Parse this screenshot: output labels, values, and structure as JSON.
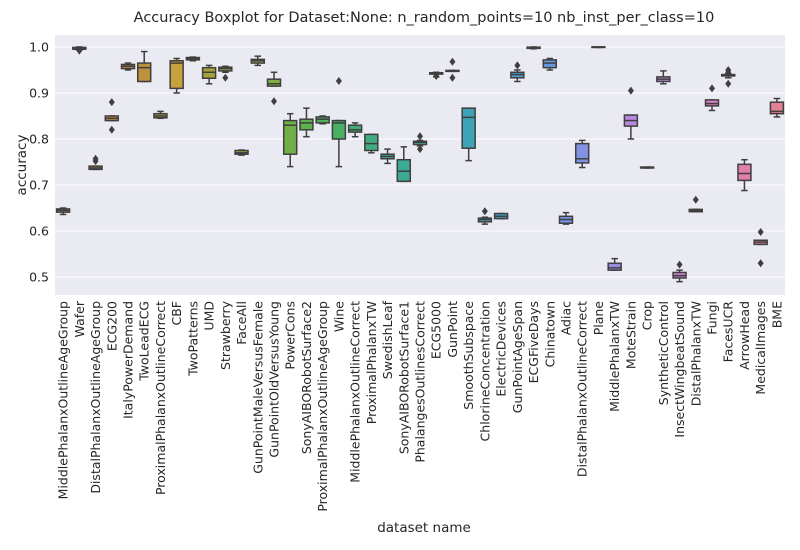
{
  "chart_data": {
    "type": "box",
    "title": "Accuracy Boxplot for Dataset:None: n_random_points=10 nb_inst_per_class=10",
    "x_label": "dataset name",
    "y_label": "accuracy",
    "ylim": [
      0.461,
      1.026
    ],
    "yticks": [
      0.5,
      0.6,
      0.7,
      0.8,
      0.9,
      {
        "value": 1,
        "label": "1.0"
      }
    ],
    "grid": true,
    "categories": [
      "MiddlePhalanxOutlineAgeGroup",
      "Wafer",
      "DistalPhalanxOutlineAgeGroup",
      "ECG200",
      "ItalyPowerDemand",
      "TwoLeadECG",
      "ProximalPhalanxOutlineCorrect",
      "CBF",
      "TwoPatterns",
      "UMD",
      "Strawberry",
      "FaceAll",
      "GunPointMaleVersusFemale",
      "GunPointOldVersusYoung",
      "PowerCons",
      "SonyAIBORobotSurface2",
      "ProximalPhalanxOutlineAgeGroup",
      "Wine",
      "MiddlePhalanxOutlineCorrect",
      "ProximalPhalanxTW",
      "SwedishLeaf",
      "SonyAIBORobotSurface1",
      "PhalangesOutlinesCorrect",
      "ECG5000",
      "GunPoint",
      "SmoothSubspace",
      "ChlorineConcentration",
      "ElectricDevices",
      "GunPointAgeSpan",
      "ECGFiveDays",
      "Chinatown",
      "Adiac",
      "DistalPhalanxOutlineCorrect",
      "Plane",
      "MiddlePhalanxTW",
      "MoteStrain",
      "Crop",
      "SyntheticControl",
      "InsectWingbeatSound",
      "DistalPhalanxTW",
      "Fungi",
      "FacesUCR",
      "ArrowHead",
      "MedicalImages",
      "BME"
    ],
    "boxes": [
      {
        "whislo": 0.636,
        "q1": 0.641,
        "med": 0.645,
        "q3": 0.648,
        "whishi": 0.65,
        "fliers": [],
        "color": "#cf7570"
      },
      {
        "whislo": 0.993,
        "q1": 0.995,
        "med": 0.998,
        "q3": 0.999,
        "whishi": 1,
        "fliers": [
          0.992
        ],
        "color": "#cc7a5c"
      },
      {
        "whislo": 0.734,
        "q1": 0.734,
        "med": 0.737,
        "q3": 0.741,
        "whishi": 0.741,
        "fliers": [
          0.752,
          0.757
        ],
        "color": "#c9804d"
      },
      {
        "whislo": 0.84,
        "q1": 0.84,
        "med": 0.845,
        "q3": 0.85,
        "whishi": 0.85,
        "fliers": [
          0.88,
          0.82
        ],
        "color": "#c68646"
      },
      {
        "whislo": 0.95,
        "q1": 0.953,
        "med": 0.958,
        "q3": 0.962,
        "whishi": 0.965,
        "fliers": [],
        "color": "#c28c41"
      },
      {
        "whislo": 0.925,
        "q1": 0.925,
        "med": 0.955,
        "q3": 0.965,
        "whishi": 0.99,
        "fliers": [],
        "color": "#bd923e"
      },
      {
        "whislo": 0.845,
        "q1": 0.846,
        "med": 0.85,
        "q3": 0.855,
        "whishi": 0.86,
        "fliers": [],
        "color": "#b8973d"
      },
      {
        "whislo": 0.9,
        "q1": 0.91,
        "med": 0.965,
        "q3": 0.97,
        "whishi": 0.975,
        "fliers": [],
        "color": "#c8a03c"
      },
      {
        "whislo": 0.97,
        "q1": 0.972,
        "med": 0.975,
        "q3": 0.977,
        "whishi": 0.978,
        "fliers": [],
        "color": "#ad9f3c"
      },
      {
        "whislo": 0.92,
        "q1": 0.932,
        "med": 0.945,
        "q3": 0.955,
        "whishi": 0.96,
        "fliers": [],
        "color": "#a6a33c"
      },
      {
        "whislo": 0.945,
        "q1": 0.948,
        "med": 0.953,
        "q3": 0.956,
        "whishi": 0.958,
        "fliers": [
          0.933
        ],
        "color": "#9ea63c"
      },
      {
        "whislo": 0.765,
        "q1": 0.767,
        "med": 0.77,
        "q3": 0.775,
        "whishi": 0.776,
        "fliers": [],
        "color": "#96a93d"
      },
      {
        "whislo": 0.96,
        "q1": 0.965,
        "med": 0.97,
        "q3": 0.973,
        "whishi": 0.98,
        "fliers": [],
        "color": "#8cac3f"
      },
      {
        "whislo": 0.915,
        "q1": 0.915,
        "med": 0.92,
        "q3": 0.93,
        "whishi": 0.945,
        "fliers": [
          0.882
        ],
        "color": "#80ae42"
      },
      {
        "whislo": 0.74,
        "q1": 0.767,
        "med": 0.83,
        "q3": 0.84,
        "whishi": 0.855,
        "fliers": [],
        "color": "#71b046"
      },
      {
        "whislo": 0.805,
        "q1": 0.82,
        "med": 0.835,
        "q3": 0.843,
        "whishi": 0.867,
        "fliers": [],
        "color": "#5fb14c"
      },
      {
        "whislo": 0.833,
        "q1": 0.835,
        "med": 0.843,
        "q3": 0.848,
        "whishi": 0.85,
        "fliers": [],
        "color": "#4fb158"
      },
      {
        "whislo": 0.74,
        "q1": 0.8,
        "med": 0.835,
        "q3": 0.84,
        "whishi": 0.84,
        "fliers": [
          0.926
        ],
        "color": "#47b065"
      },
      {
        "whislo": 0.805,
        "q1": 0.815,
        "med": 0.82,
        "q3": 0.83,
        "whishi": 0.835,
        "fliers": [],
        "color": "#42ae73"
      },
      {
        "whislo": 0.77,
        "q1": 0.775,
        "med": 0.79,
        "q3": 0.81,
        "whishi": 0.81,
        "fliers": [],
        "color": "#3fad80"
      },
      {
        "whislo": 0.747,
        "q1": 0.757,
        "med": 0.762,
        "q3": 0.767,
        "whishi": 0.778,
        "fliers": [],
        "color": "#3dac8b"
      },
      {
        "whislo": 0.708,
        "q1": 0.708,
        "med": 0.73,
        "q3": 0.755,
        "whishi": 0.783,
        "fliers": [],
        "color": "#3caa95"
      },
      {
        "whislo": 0.785,
        "q1": 0.788,
        "med": 0.793,
        "q3": 0.795,
        "whishi": 0.797,
        "fliers": [
          0.806,
          0.778
        ],
        "color": "#3ba99e"
      },
      {
        "whislo": 0.935,
        "q1": 0.941,
        "med": 0.942,
        "q3": 0.944,
        "whishi": 0.945,
        "fliers": [
          0.937
        ],
        "color": "#3aa7a6"
      },
      {
        "whislo": 0.947,
        "q1": 0.947,
        "med": 0.948,
        "q3": 0.949,
        "whishi": 0.949,
        "fliers": [
          0.968,
          0.933
        ],
        "color": "#3ba6ae"
      },
      {
        "whislo": 0.753,
        "q1": 0.78,
        "med": 0.847,
        "q3": 0.867,
        "whishi": 0.867,
        "fliers": [],
        "color": "#3da4b6"
      },
      {
        "whislo": 0.615,
        "q1": 0.62,
        "med": 0.625,
        "q3": 0.628,
        "whishi": 0.63,
        "fliers": [
          0.643
        ],
        "color": "#40a2be"
      },
      {
        "whislo": 0.627,
        "q1": 0.627,
        "med": 0.632,
        "q3": 0.638,
        "whishi": 0.638,
        "fliers": [],
        "color": "#45a0c7"
      },
      {
        "whislo": 0.925,
        "q1": 0.933,
        "med": 0.94,
        "q3": 0.945,
        "whishi": 0.95,
        "fliers": [
          0.96
        ],
        "color": "#4d9ed0"
      },
      {
        "whislo": 0.996,
        "q1": 0.997,
        "med": 0.998,
        "q3": 0.9995,
        "whishi": 1,
        "fliers": [],
        "color": "#589bd8"
      },
      {
        "whislo": 0.95,
        "q1": 0.955,
        "med": 0.965,
        "q3": 0.972,
        "whishi": 0.975,
        "fliers": [],
        "color": "#6698de"
      },
      {
        "whislo": 0.615,
        "q1": 0.617,
        "med": 0.625,
        "q3": 0.632,
        "whishi": 0.64,
        "fliers": [],
        "color": "#7495e1"
      },
      {
        "whislo": 0.738,
        "q1": 0.748,
        "med": 0.757,
        "q3": 0.79,
        "whishi": 0.797,
        "fliers": [],
        "color": "#8292e2"
      },
      {
        "whislo": 0.999,
        "q1": 0.999,
        "med": 1,
        "q3": 1,
        "whishi": 1,
        "fliers": [],
        "color": "#908fe2"
      },
      {
        "whislo": 0.515,
        "q1": 0.515,
        "med": 0.52,
        "q3": 0.53,
        "whishi": 0.54,
        "fliers": [],
        "color": "#9d8be1"
      },
      {
        "whislo": 0.8,
        "q1": 0.828,
        "med": 0.84,
        "q3": 0.852,
        "whishi": 0.852,
        "fliers": [
          0.905
        ],
        "color": "#b888df"
      },
      {
        "whislo": 0.737,
        "q1": 0.737,
        "med": 0.738,
        "q3": 0.739,
        "whishi": 0.739,
        "fliers": [],
        "color": "#b485dc"
      },
      {
        "whislo": 0.92,
        "q1": 0.925,
        "med": 0.93,
        "q3": 0.935,
        "whishi": 0.948,
        "fliers": [],
        "color": "#bf82d8"
      },
      {
        "whislo": 0.49,
        "q1": 0.498,
        "med": 0.503,
        "q3": 0.51,
        "whishi": 0.515,
        "fliers": [
          0.527
        ],
        "color": "#c980d2"
      },
      {
        "whislo": 0.642,
        "q1": 0.642,
        "med": 0.645,
        "q3": 0.647,
        "whishi": 0.647,
        "fliers": [
          0.668
        ],
        "color": "#d27fca"
      },
      {
        "whislo": 0.862,
        "q1": 0.872,
        "med": 0.877,
        "q3": 0.885,
        "whishi": 0.885,
        "fliers": [
          0.91
        ],
        "color": "#d97ec1"
      },
      {
        "whislo": 0.933,
        "q1": 0.937,
        "med": 0.938,
        "q3": 0.94,
        "whishi": 0.942,
        "fliers": [
          0.95,
          0.945,
          0.92
        ],
        "color": "#de7eb6"
      },
      {
        "whislo": 0.688,
        "q1": 0.71,
        "med": 0.725,
        "q3": 0.745,
        "whishi": 0.755,
        "fliers": [],
        "color": "#e17eab"
      },
      {
        "whislo": 0.571,
        "q1": 0.571,
        "med": 0.576,
        "q3": 0.58,
        "whishi": 0.58,
        "fliers": [
          0.598,
          0.53
        ],
        "color": "#e27fa0"
      },
      {
        "whislo": 0.848,
        "q1": 0.855,
        "med": 0.86,
        "q3": 0.88,
        "whishi": 0.888,
        "fliers": [],
        "color": "#e28095"
      }
    ]
  }
}
